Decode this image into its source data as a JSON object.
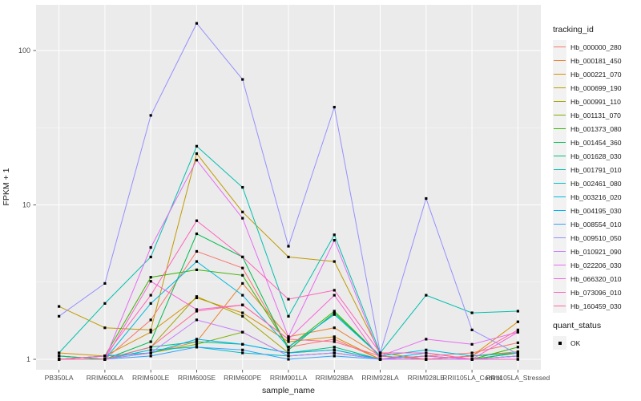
{
  "figure": {
    "background": "#ffffff",
    "panel_background": "#ebebeb",
    "grid_color": "#ffffff",
    "tick_label_color": "#4d4d4d",
    "axis_title_color": "#1a1a1a",
    "point_color": "#000000"
  },
  "chart_data": {
    "type": "line",
    "title": "",
    "xlabel": "sample_name",
    "ylabel": "FPKM + 1",
    "y_scale": "log10",
    "y_ticks": [
      1,
      10,
      100
    ],
    "y_minor_ticks": [
      3.162,
      31.62
    ],
    "ylim": [
      0.85,
      200
    ],
    "grid": "major-white-on-gray",
    "legend_position": "right",
    "point_shape": "square",
    "categories": [
      "PB350LA",
      "RRIM600LA",
      "RRIM600LE",
      "RRIM600SE",
      "RRIM600PE",
      "RRIM901LA",
      "RRIM928BA",
      "RRIM928LA",
      "RRIM928LE",
      "RRII105LA_Control",
      "RRII105LA_Stressed"
    ],
    "series": [
      {
        "name": "Hb_000000_280",
        "color": "#F8766D",
        "values": [
          1.05,
          1.0,
          1.8,
          5.0,
          3.9,
          1.2,
          1.35,
          1.0,
          1.05,
          1.1,
          1.28
        ]
      },
      {
        "name": "Hb_000181_450",
        "color": "#EA8331",
        "values": [
          1.0,
          1.05,
          1.1,
          1.3,
          3.1,
          1.4,
          1.6,
          1.05,
          1.0,
          1.05,
          1.12
        ]
      },
      {
        "name": "Hb_000221_070",
        "color": "#D89000",
        "values": [
          1.1,
          1.05,
          1.5,
          2.5,
          2.0,
          1.3,
          1.4,
          1.0,
          1.0,
          1.05,
          1.75
        ]
      },
      {
        "name": "Hb_000699_190",
        "color": "#C09B00",
        "values": [
          2.2,
          1.6,
          1.55,
          21.5,
          9.0,
          4.6,
          4.3,
          1.1,
          1.0,
          1.0,
          1.1
        ]
      },
      {
        "name": "Hb_000991_110",
        "color": "#A3A500",
        "values": [
          1.0,
          1.0,
          1.2,
          2.55,
          1.9,
          1.1,
          1.15,
          1.0,
          1.05,
          1.0,
          1.05
        ]
      },
      {
        "name": "Hb_001131_070",
        "color": "#7CAE00",
        "values": [
          1.05,
          1.0,
          1.1,
          1.25,
          1.5,
          1.05,
          1.1,
          1.0,
          1.0,
          1.05,
          1.1
        ]
      },
      {
        "name": "Hb_001373_080",
        "color": "#39B600",
        "values": [
          1.0,
          1.05,
          3.4,
          3.8,
          3.5,
          1.2,
          2.05,
          1.05,
          1.0,
          1.0,
          1.2
        ]
      },
      {
        "name": "Hb_001454_360",
        "color": "#00BB4E",
        "values": [
          1.0,
          1.0,
          1.3,
          6.5,
          4.6,
          1.15,
          2.0,
          1.05,
          1.0,
          1.0,
          1.1
        ]
      },
      {
        "name": "Hb_001628_030",
        "color": "#00C087",
        "values": [
          1.05,
          1.0,
          1.2,
          1.3,
          1.25,
          1.1,
          1.2,
          1.0,
          1.0,
          1.0,
          1.05
        ]
      },
      {
        "name": "Hb_001791_010",
        "color": "#00C0AF",
        "values": [
          1.1,
          2.3,
          4.6,
          24.0,
          13.0,
          1.9,
          6.4,
          1.1,
          2.6,
          2.0,
          2.05
        ]
      },
      {
        "name": "Hb_002461_080",
        "color": "#00BFC4",
        "values": [
          1.0,
          1.0,
          1.15,
          1.2,
          1.1,
          1.05,
          1.1,
          1.0,
          1.05,
          1.0,
          1.0
        ]
      },
      {
        "name": "Hb_003216_020",
        "color": "#00BAE0",
        "values": [
          1.0,
          1.0,
          2.3,
          4.3,
          2.6,
          1.2,
          1.95,
          1.05,
          1.15,
          1.05,
          1.1
        ]
      },
      {
        "name": "Hb_004195_030",
        "color": "#00B0F6",
        "values": [
          1.0,
          1.05,
          1.1,
          1.35,
          1.25,
          1.1,
          1.15,
          1.0,
          1.1,
          1.0,
          1.05
        ]
      },
      {
        "name": "Hb_008554_010",
        "color": "#35A2FF",
        "values": [
          1.0,
          1.0,
          1.05,
          1.2,
          1.15,
          1.0,
          1.05,
          1.0,
          1.0,
          1.0,
          1.0
        ]
      },
      {
        "name": "Hb_009510_050",
        "color": "#9590FF",
        "values": [
          1.9,
          3.1,
          38.0,
          150.0,
          65.0,
          5.4,
          43.0,
          1.1,
          11.0,
          1.55,
          1.08
        ]
      },
      {
        "name": "Hb_010921_090",
        "color": "#C77CFF",
        "values": [
          1.0,
          1.0,
          1.1,
          1.8,
          1.5,
          1.05,
          1.1,
          1.0,
          1.0,
          1.0,
          1.05
        ]
      },
      {
        "name": "Hb_022206_030",
        "color": "#E76BF3",
        "values": [
          1.0,
          1.0,
          5.3,
          19.5,
          8.2,
          1.4,
          5.9,
          1.05,
          1.35,
          1.25,
          1.5
        ]
      },
      {
        "name": "Hb_066320_010",
        "color": "#FA62DB",
        "values": [
          1.0,
          1.0,
          3.2,
          2.1,
          2.25,
          1.35,
          2.6,
          1.0,
          1.05,
          1.0,
          1.5
        ]
      },
      {
        "name": "Hb_073096_010",
        "color": "#FF62BC",
        "values": [
          1.0,
          1.05,
          2.6,
          7.9,
          4.6,
          2.45,
          2.8,
          1.1,
          1.1,
          1.0,
          1.0
        ]
      },
      {
        "name": "Hb_160459_030",
        "color": "#FF6A98",
        "values": [
          1.0,
          1.0,
          1.2,
          2.05,
          2.25,
          1.35,
          1.3,
          1.05,
          1.0,
          1.05,
          1.55
        ]
      }
    ],
    "legend": {
      "color_title": "tracking_id",
      "shape_title": "quant_status",
      "shape_items": [
        {
          "label": "OK"
        }
      ]
    }
  }
}
